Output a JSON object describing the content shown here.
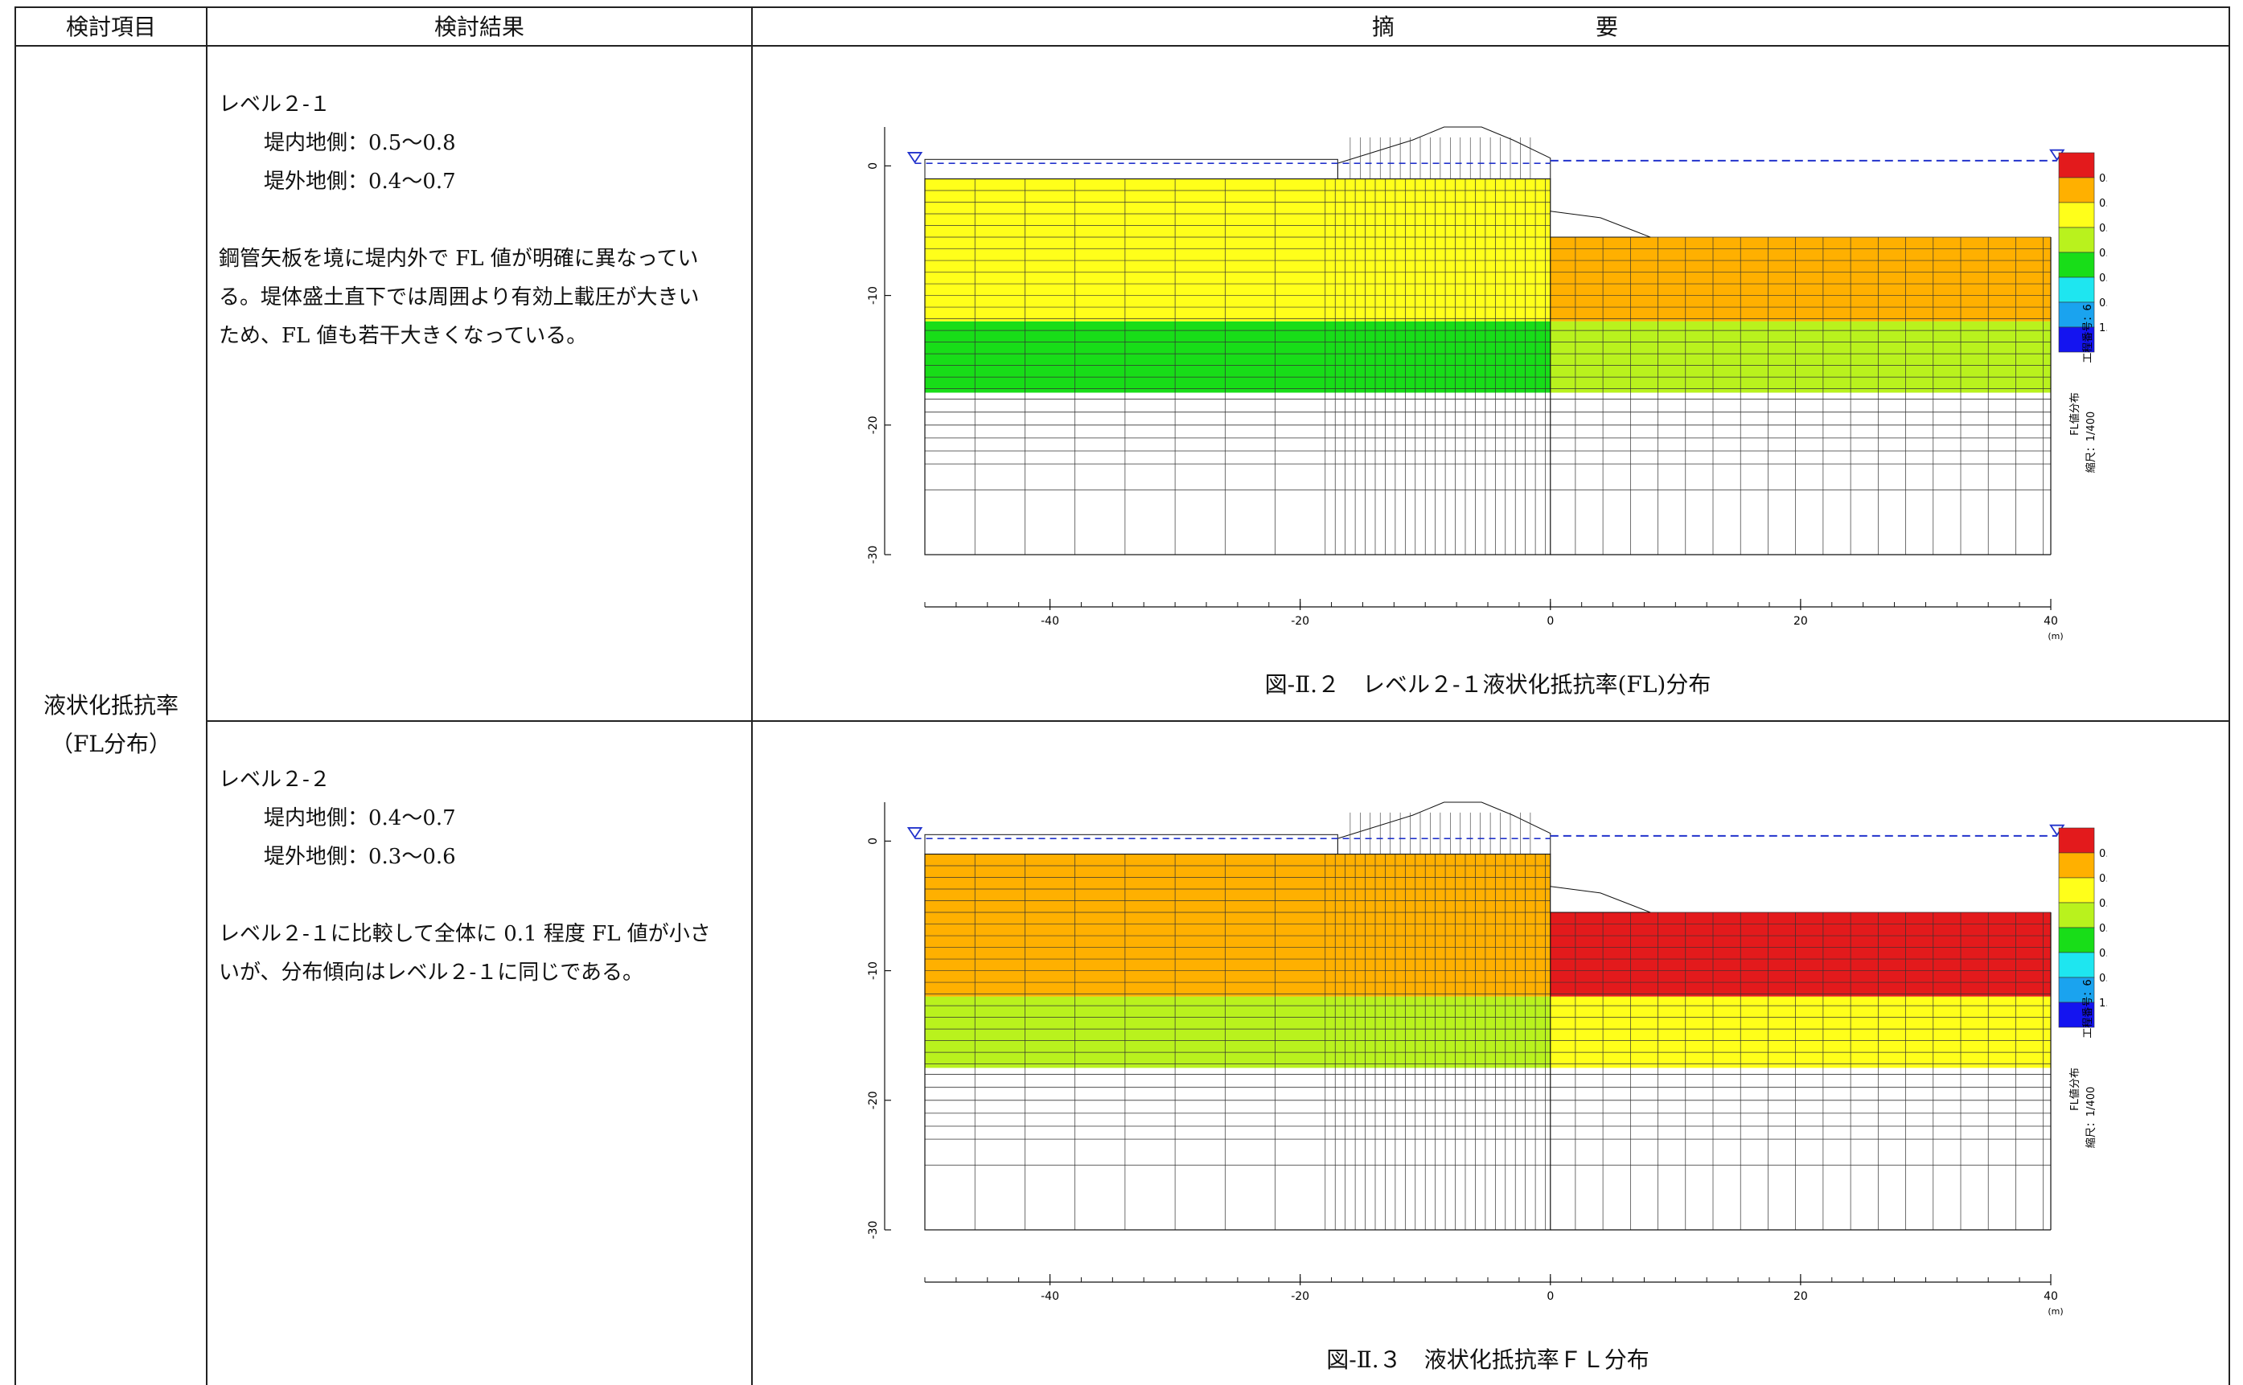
{
  "header": {
    "col1": "検討項目",
    "col2": "検討結果",
    "col3_a": "摘",
    "col3_b": "要"
  },
  "item_label": {
    "line1": "液状化抵抗率",
    "line2": "（FL分布）"
  },
  "rows": [
    {
      "title": "レベル２-１",
      "inner": "堤内地側：0.5～0.8",
      "outer": "堤外地側：0.4～0.7",
      "para1": "鋼管矢板を境に堤内外で FL 値が明確に異なってい",
      "para2": "る。堤体盛土直下では周囲より有効上載圧が大きい",
      "para3": "ため、FL 値も若干大きくなっている。",
      "caption": "図-Ⅱ.２　レベル２-１液状化抵抗率(FL)分布"
    },
    {
      "title": "レベル２-２",
      "inner": "堤内地側：0.4～0.7",
      "outer": "堤外地側：0.3～0.6",
      "para1": "レベル２-１に比較して全体に 0.1 程度 FL 値が小さ",
      "para2": "いが、分布傾向はレベル２-１に同じである。",
      "caption": "図-Ⅱ.３　液状化抵抗率ＦＬ分布"
    }
  ],
  "figure_common": {
    "x_ticks": [
      "-40",
      "-20",
      "0",
      "20",
      "40"
    ],
    "y_ticks": [
      "0",
      "-10",
      "-20",
      "-30"
    ],
    "unit": "(m)",
    "legend_values": [
      "0.4",
      "0.5",
      "0.6",
      "0.7",
      "0.8",
      "0.9",
      "1.0"
    ],
    "legend_colors": [
      "#e31a1c",
      "#ffb000",
      "#ffff1a",
      "#b9f21d",
      "#18dd18",
      "#1ee6f0",
      "#1aa3ef",
      "#1414f0"
    ],
    "side_text_1": "工程番号：6",
    "side_text_2": "FL値分布",
    "side_text_3": "縮尺：1/400"
  },
  "chart_data": [
    {
      "type": "heatmap",
      "title": "図-Ⅱ.２　レベル２-１液状化抵抗率(FL)分布",
      "x_range": [
        -50,
        40
      ],
      "y_range": [
        -30,
        3
      ],
      "regions": [
        {
          "zone": "堤内地側 upper layer",
          "x": [
            -50,
            0
          ],
          "y": [
            -1,
            -12
          ],
          "fl": 0.6
        },
        {
          "zone": "堤内地側 lower layer",
          "x": [
            -50,
            0
          ],
          "y": [
            -12,
            -17.5
          ],
          "fl": 0.8
        },
        {
          "zone": "堤外地側 upper layer",
          "x": [
            0,
            40
          ],
          "y": [
            -5.5,
            -12
          ],
          "fl": 0.5
        },
        {
          "zone": "堤外地側 lower layer",
          "x": [
            0,
            40
          ],
          "y": [
            -12,
            -17.5
          ],
          "fl": 0.7
        }
      ]
    },
    {
      "type": "heatmap",
      "title": "図-Ⅱ.３　液状化抵抗率ＦＬ分布",
      "x_range": [
        -50,
        40
      ],
      "y_range": [
        -30,
        3
      ],
      "regions": [
        {
          "zone": "堤内地側 upper layer",
          "x": [
            -50,
            0
          ],
          "y": [
            -1,
            -12
          ],
          "fl": 0.5
        },
        {
          "zone": "堤内地側 lower layer",
          "x": [
            -50,
            0
          ],
          "y": [
            -12,
            -17.5
          ],
          "fl": 0.7
        },
        {
          "zone": "堤外地側 upper layer",
          "x": [
            0,
            40
          ],
          "y": [
            -5.5,
            -12
          ],
          "fl": 0.4
        },
        {
          "zone": "堤外地側 lower layer",
          "x": [
            0,
            40
          ],
          "y": [
            -12,
            -17.5
          ],
          "fl": 0.6
        }
      ]
    }
  ]
}
